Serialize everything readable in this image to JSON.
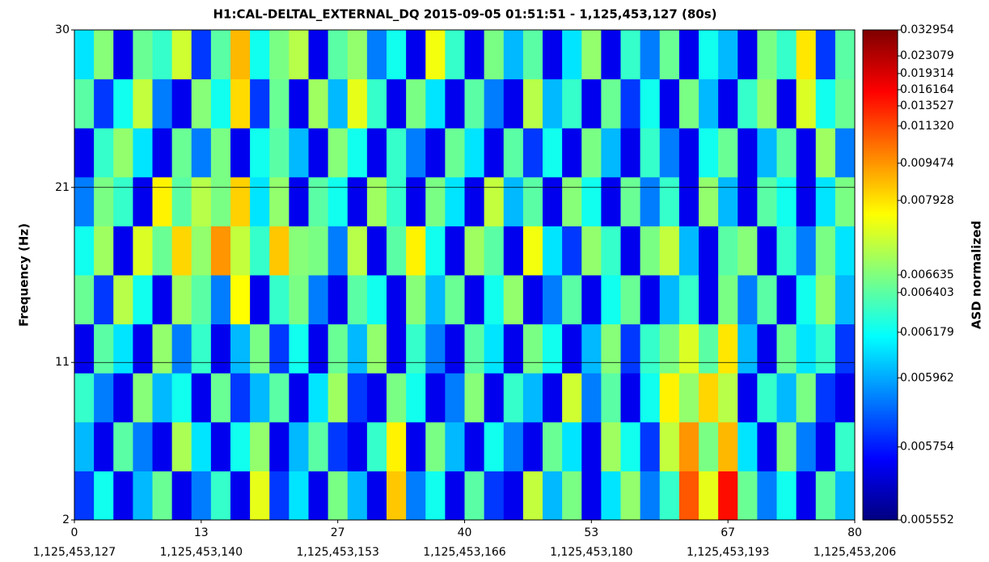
{
  "chart_data": {
    "type": "spectrogram",
    "title": "H1:CAL-DELTAL_EXTERNAL_DQ 2015-09-05 01:51:51 - 1,125,453,127 (80s)",
    "y_label": "Frequency (Hz)",
    "colorbar_label": "ASD normalized",
    "colormap": "jet",
    "grid": true,
    "xlim": [
      0,
      80
    ],
    "ylim": [
      2,
      30
    ],
    "xticks": [
      0,
      13,
      27,
      40,
      53,
      67,
      80
    ],
    "xticks_gps": [
      {
        "value": 1125453127,
        "label": "1,125,453,127"
      },
      {
        "value": 1125453140,
        "label": "1,125,453,140"
      },
      {
        "value": 1125453153,
        "label": "1,125,453,153"
      },
      {
        "value": 1125453166,
        "label": "1,125,453,166"
      },
      {
        "value": 1125453180,
        "label": "1,125,453,180"
      },
      {
        "value": 1125453193,
        "label": "1,125,453,193"
      },
      {
        "value": 1125453206,
        "label": "1,125,453,206"
      }
    ],
    "yticks": [
      2,
      11,
      21,
      30
    ],
    "clim": [
      0.005552,
      0.032954
    ],
    "cticks": [
      0.005552,
      0.005754,
      0.005962,
      0.006179,
      0.006403,
      0.006635,
      0.007928,
      0.009474,
      {
        "value": 0.01132,
        "label": "0.011320"
      },
      0.013527,
      0.016164,
      0.019314,
      0.023079,
      0.032954
    ],
    "z": [
      [
        0.0058,
        0.0062,
        0.0057,
        0.006,
        0.0065,
        0.0057,
        0.0059,
        0.0063,
        0.0057,
        0.0075,
        0.0058,
        0.0061,
        0.0057,
        0.0066,
        0.006,
        0.0057,
        0.0085,
        0.0059,
        0.0062,
        0.0057,
        0.0064,
        0.0058,
        0.0057,
        0.0072,
        0.006,
        0.0066,
        0.0057,
        0.0061,
        0.0068,
        0.0059,
        0.0063,
        0.011,
        0.0075,
        0.015,
        0.0065,
        0.0059,
        0.0062,
        0.0057,
        0.0064,
        0.006
      ],
      [
        0.006,
        0.0057,
        0.0064,
        0.0059,
        0.0057,
        0.007,
        0.0061,
        0.0057,
        0.0062,
        0.0068,
        0.0057,
        0.006,
        0.0064,
        0.0058,
        0.0057,
        0.0063,
        0.0078,
        0.0057,
        0.0066,
        0.006,
        0.0057,
        0.0062,
        0.0059,
        0.0057,
        0.0065,
        0.0061,
        0.0057,
        0.0069,
        0.0062,
        0.0058,
        0.0072,
        0.0095,
        0.0066,
        0.0088,
        0.0061,
        0.0057,
        0.0067,
        0.0059,
        0.0057,
        0.0063
      ],
      [
        0.0063,
        0.0059,
        0.0057,
        0.0067,
        0.006,
        0.0062,
        0.0057,
        0.0065,
        0.0058,
        0.006,
        0.0064,
        0.0057,
        0.0061,
        0.0069,
        0.0058,
        0.0057,
        0.0066,
        0.0062,
        0.0057,
        0.0059,
        0.0067,
        0.0057,
        0.0063,
        0.006,
        0.0057,
        0.0073,
        0.0059,
        0.0064,
        0.0057,
        0.0062,
        0.0078,
        0.0068,
        0.0082,
        0.0071,
        0.0057,
        0.0063,
        0.006,
        0.0066,
        0.0058,
        0.0057
      ],
      [
        0.0057,
        0.0064,
        0.0061,
        0.0057,
        0.0068,
        0.0059,
        0.0063,
        0.0057,
        0.006,
        0.0066,
        0.0058,
        0.0062,
        0.0057,
        0.0065,
        0.006,
        0.0068,
        0.0057,
        0.0063,
        0.0059,
        0.0057,
        0.0064,
        0.0061,
        0.0057,
        0.0066,
        0.0062,
        0.0057,
        0.006,
        0.0067,
        0.0058,
        0.0063,
        0.0066,
        0.0074,
        0.0064,
        0.0079,
        0.006,
        0.0057,
        0.0065,
        0.0061,
        0.0063,
        0.0058
      ],
      [
        0.0065,
        0.0058,
        0.0071,
        0.0062,
        0.0057,
        0.0069,
        0.0064,
        0.0059,
        0.0077,
        0.0057,
        0.0063,
        0.0066,
        0.0059,
        0.0057,
        0.0064,
        0.0062,
        0.0057,
        0.0067,
        0.006,
        0.0065,
        0.0057,
        0.0062,
        0.0068,
        0.0057,
        0.0059,
        0.0064,
        0.0057,
        0.0062,
        0.0065,
        0.0057,
        0.006,
        0.0063,
        0.0057,
        0.0066,
        0.0059,
        0.0064,
        0.0057,
        0.0062,
        0.0068,
        0.006
      ],
      [
        0.0062,
        0.0069,
        0.0057,
        0.0074,
        0.0065,
        0.0082,
        0.0068,
        0.0095,
        0.0072,
        0.0063,
        0.0085,
        0.0067,
        0.0066,
        0.0059,
        0.0071,
        0.0057,
        0.0064,
        0.0078,
        0.0062,
        0.0057,
        0.0069,
        0.0064,
        0.0057,
        0.0076,
        0.0061,
        0.0058,
        0.0068,
        0.0063,
        0.0057,
        0.0066,
        0.0072,
        0.006,
        0.0057,
        0.0064,
        0.0067,
        0.0057,
        0.0063,
        0.0059,
        0.0066,
        0.0061
      ],
      [
        0.0059,
        0.0066,
        0.0063,
        0.0057,
        0.0078,
        0.0064,
        0.0071,
        0.0066,
        0.0083,
        0.0061,
        0.0068,
        0.0057,
        0.0064,
        0.0062,
        0.0057,
        0.0069,
        0.0063,
        0.0057,
        0.0066,
        0.0061,
        0.0057,
        0.0072,
        0.006,
        0.0064,
        0.0057,
        0.0067,
        0.0062,
        0.0057,
        0.0065,
        0.0059,
        0.0063,
        0.0057,
        0.0068,
        0.006,
        0.0057,
        0.0064,
        0.0062,
        0.0057,
        0.0061,
        0.0066
      ],
      [
        0.0057,
        0.0063,
        0.0068,
        0.0061,
        0.0057,
        0.0065,
        0.0059,
        0.0066,
        0.0057,
        0.0062,
        0.0064,
        0.006,
        0.0057,
        0.0067,
        0.0062,
        0.0057,
        0.0063,
        0.0059,
        0.0057,
        0.0065,
        0.0061,
        0.0057,
        0.0064,
        0.0058,
        0.0062,
        0.0057,
        0.0066,
        0.006,
        0.0057,
        0.0063,
        0.0059,
        0.0057,
        0.0062,
        0.0065,
        0.0057,
        0.006,
        0.0064,
        0.0057,
        0.0069,
        0.0059
      ],
      [
        0.0064,
        0.0058,
        0.0062,
        0.0072,
        0.0059,
        0.0057,
        0.0067,
        0.0062,
        0.0081,
        0.0058,
        0.0065,
        0.0057,
        0.0069,
        0.006,
        0.0075,
        0.0063,
        0.0057,
        0.0066,
        0.0061,
        0.0057,
        0.0064,
        0.0059,
        0.0057,
        0.0071,
        0.006,
        0.0063,
        0.0057,
        0.0065,
        0.0058,
        0.0062,
        0.0057,
        0.0066,
        0.006,
        0.0057,
        0.0063,
        0.0068,
        0.0057,
        0.0074,
        0.0062,
        0.0065
      ],
      [
        0.0061,
        0.0067,
        0.0057,
        0.0065,
        0.0063,
        0.0073,
        0.0058,
        0.0064,
        0.0088,
        0.0062,
        0.0066,
        0.0071,
        0.0057,
        0.0064,
        0.0068,
        0.0059,
        0.0062,
        0.0057,
        0.0076,
        0.0063,
        0.0057,
        0.0066,
        0.006,
        0.0064,
        0.0057,
        0.0061,
        0.0068,
        0.0057,
        0.0063,
        0.0059,
        0.0065,
        0.0057,
        0.0062,
        0.006,
        0.0057,
        0.0066,
        0.0063,
        0.0079,
        0.0058,
        0.0064
      ]
    ]
  }
}
